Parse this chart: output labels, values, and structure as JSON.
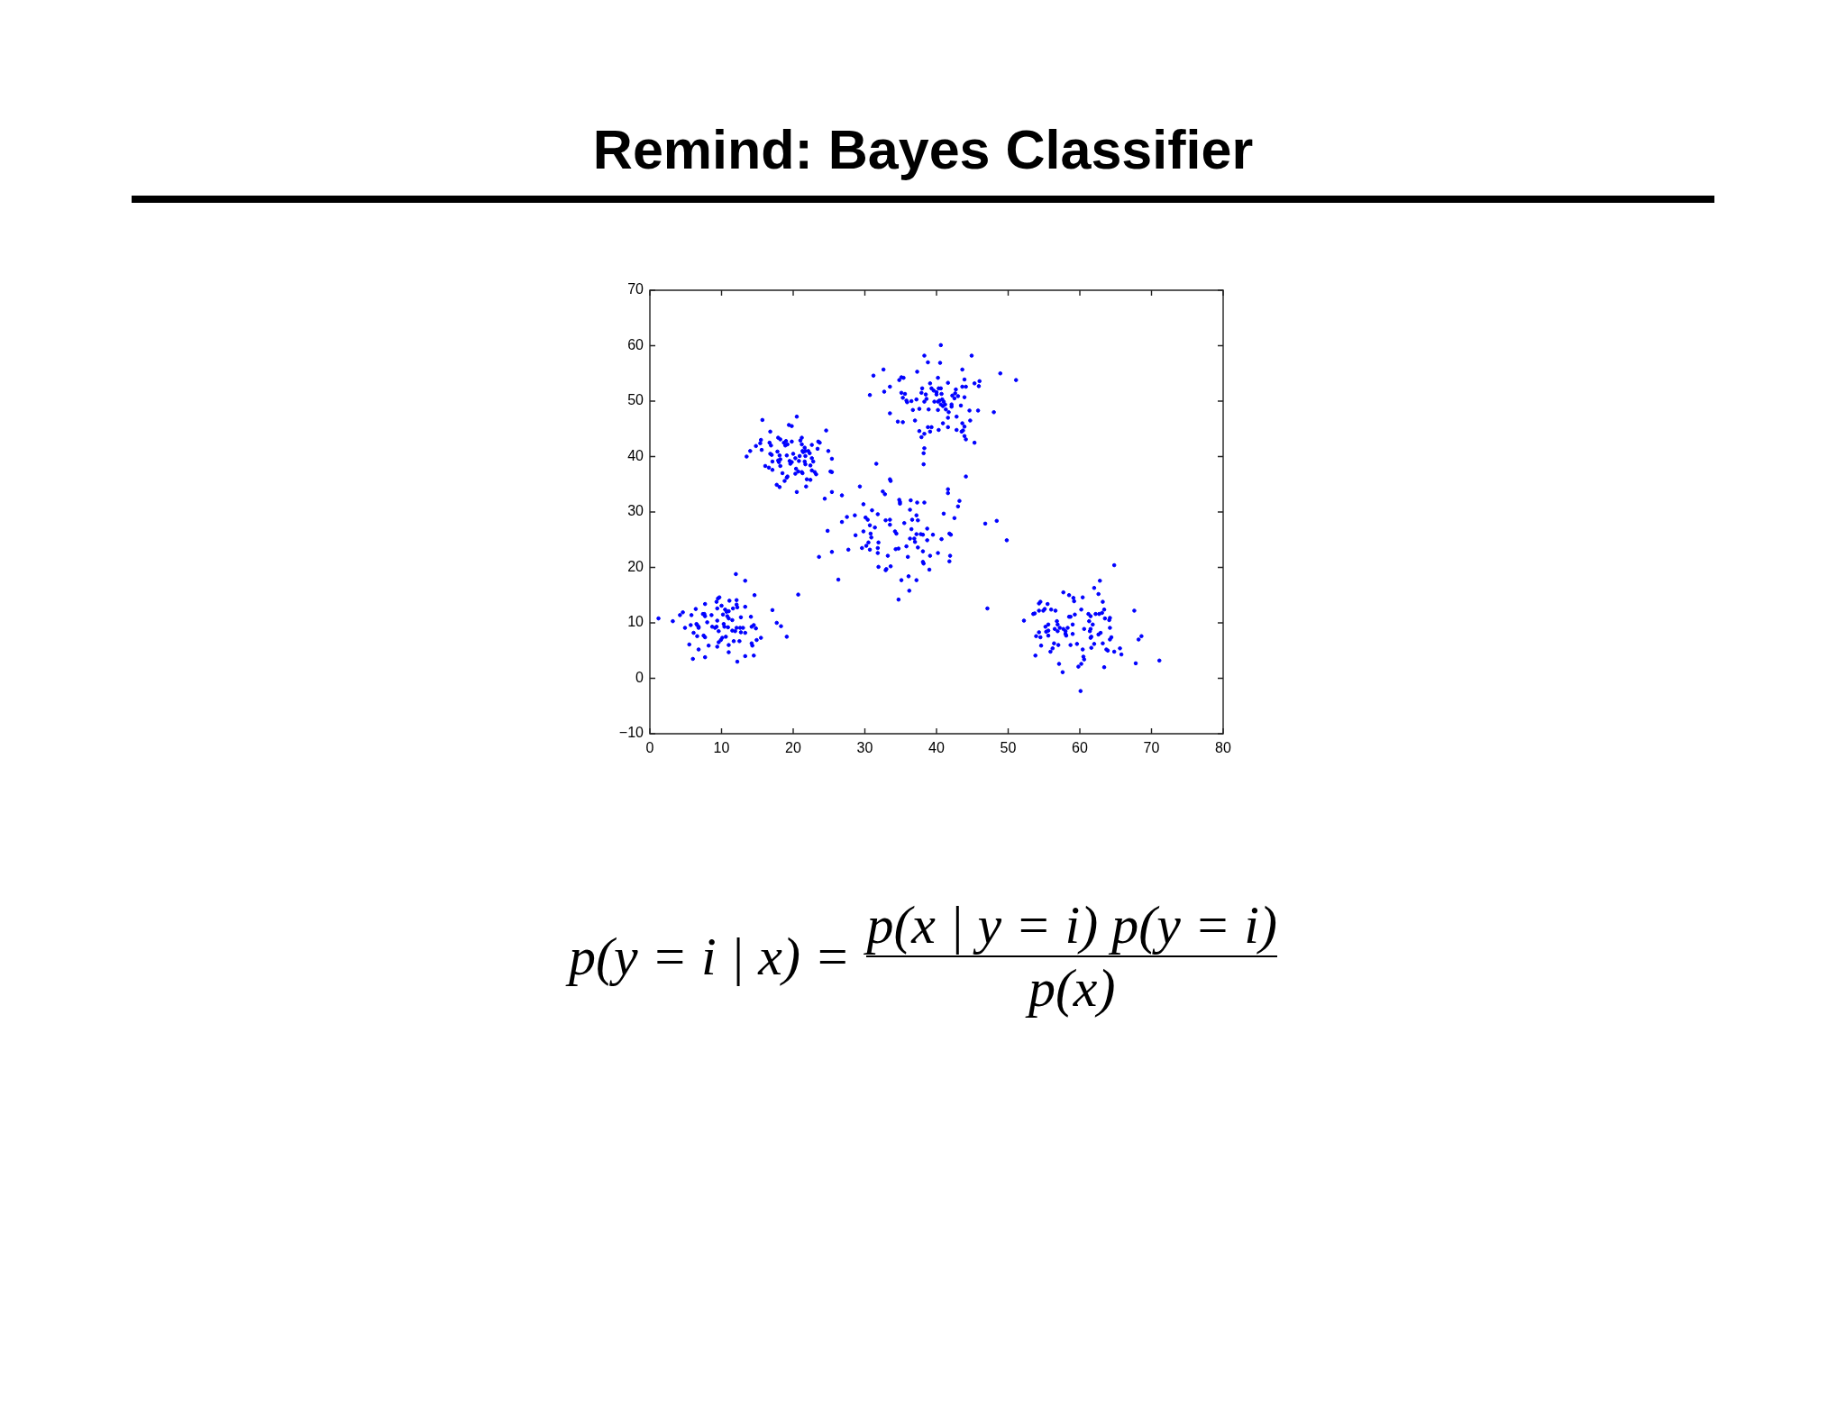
{
  "chart_data": {
    "type": "scatter",
    "title": "Remind: Bayes Classifier",
    "annotations": [
      "p(y = i | x) =",
      "p(x | y = i) p(y = i)",
      "p(x)"
    ],
    "color": "#0000ff",
    "marker": "circle",
    "xlim": [
      0,
      80
    ],
    "ylim": [
      -10,
      70
    ],
    "xticks": [
      0,
      10,
      20,
      30,
      40,
      50,
      60,
      70,
      80
    ],
    "yticks": [
      {
        "value": -10,
        "label": "−10"
      },
      0,
      10,
      20,
      30,
      40,
      50,
      60,
      70
    ],
    "x": [
      13.5,
      14.0,
      14.8,
      15.4,
      15.5,
      15.6,
      15.7,
      16.1,
      16.6,
      16.7,
      16.8,
      16.9,
      16.8,
      17.0,
      17.1,
      17.1,
      17.7,
      18.1,
      17.9,
      18.2,
      17.8,
      18.1,
      17.9,
      18.0,
      18.2,
      18.2,
      18.5,
      18.7,
      18.9,
      19.0,
      19.2,
      18.8,
      19.1,
      19.2,
      19.4,
      19.8,
      20.5,
      19.8,
      19.1,
      19.5,
      19.6,
      19.8,
      20.0,
      20.3,
      20.4,
      20.3,
      20.5,
      20.7,
      20.8,
      20.9,
      21.0,
      21.2,
      21.2,
      21.3,
      21.4,
      21.6,
      21.7,
      21.7,
      21.6,
      21.7,
      21.2,
      21.3,
      21.9,
      21.8,
      22.1,
      22.3,
      22.4,
      22.4,
      22.6,
      22.6,
      22.8,
      22.6,
      23.0,
      23.2,
      23.4,
      23.5,
      23.7,
      24.6,
      24.9,
      25.2,
      25.4,
      25.4,
      25.4,
      24.4,
      30.7,
      31.2,
      32.6,
      32.7,
      33.5,
      33.5,
      34.6,
      34.8,
      35.1,
      35.4,
      35.1,
      35.3,
      35.6,
      35.8,
      35.9,
      35.3,
      36.5,
      36.7,
      37.0,
      37.3,
      37.2,
      37.6,
      37.6,
      38.3,
      38.8,
      40.6,
      40.5,
      44.9,
      43.6,
      48.9,
      51.1,
      46.0,
      45.3,
      43.9,
      43.6,
      44.1,
      45.9,
      40.2,
      41.6,
      39.1,
      38.0,
      37.9,
      38.5,
      38.6,
      38.3,
      39.3,
      39.6,
      40.0,
      40.0,
      40.3,
      40.6,
      40.7,
      40.2,
      40.4,
      40.6,
      40.8,
      41.0,
      41.2,
      40.9,
      39.7,
      38.9,
      40.2,
      41.3,
      41.7,
      41.6,
      42.1,
      42.1,
      42.2,
      42.5,
      42.7,
      42.6,
      43.0,
      43.9,
      43.4,
      42.8,
      44.6,
      45.8,
      48.0,
      44.7,
      43.6,
      43.9,
      43.7,
      43.5,
      43.9,
      44.1,
      45.3,
      41.6,
      42.8,
      40.9,
      40.3,
      38.8,
      39.3,
      39.1,
      38.3,
      37.9,
      38.3,
      38.2,
      38.2,
      44.1,
      41.6,
      41.6,
      43.2,
      43.0,
      38.3,
      41.0,
      31.6,
      29.3,
      26.8,
      33.5,
      33.6,
      32.5,
      32.8,
      34.8,
      34.9,
      34.9,
      36.4,
      37.3,
      29.8,
      31.0,
      36.3,
      24.8,
      25.4,
      23.6,
      26.3,
      26.8,
      27.5,
      27.7,
      28.6,
      28.7,
      29.8,
      29.6,
      30.1,
      30.4,
      30.7,
      30.5,
      30.2,
      30.7,
      30.8,
      30.9,
      31.4,
      31.8,
      31.9,
      31.8,
      31.8,
      31.9,
      32.9,
      33.5,
      33.5,
      33.0,
      32.9,
      33.2,
      33.6,
      34.2,
      34.4,
      34.3,
      34.7,
      34.7,
      35.1,
      35.5,
      35.8,
      36.0,
      36.1,
      36.2,
      36.5,
      36.3,
      36.6,
      36.9,
      37.0,
      37.2,
      37.2,
      37.2,
      37.4,
      37.4,
      42.5,
      46.8,
      48.4,
      49.8,
      37.8,
      38.1,
      38.7,
      38.7,
      39.5,
      40.7,
      41.8,
      42.0,
      38.1,
      39.1,
      40.2,
      41.9,
      41.8,
      38.1,
      38.2,
      39.0,
      47.1,
      1.2,
      3.2,
      4.2,
      4.6,
      4.9,
      5.5,
      5.8,
      5.7,
      6.0,
      6.1,
      6.4,
      6.5,
      6.6,
      6.8,
      6.8,
      6.6,
      6.8,
      7.4,
      7.6,
      7.7,
      7.7,
      7.5,
      7.7,
      7.7,
      8.0,
      8.2,
      8.6,
      8.7,
      9.1,
      9.3,
      9.4,
      9.5,
      9.7,
      9.3,
      9.4,
      9.6,
      9.4,
      9.6,
      9.9,
      10.1,
      10.0,
      10.2,
      10.3,
      10.4,
      10.5,
      10.7,
      10.6,
      10.8,
      11.0,
      11.1,
      11.0,
      10.9,
      11.0,
      11.0,
      11.5,
      11.6,
      11.5,
      11.7,
      11.9,
      12.1,
      12.0,
      12.1,
      12.1,
      12.2,
      12.2,
      12.5,
      12.6,
      12.7,
      12.7,
      13.0,
      13.3,
      13.3,
      13.3,
      13.3,
      14.1,
      14.2,
      14.2,
      14.3,
      14.5,
      14.6,
      14.5,
      14.8,
      14.9,
      15.5,
      17.1,
      17.7,
      18.3,
      19.1,
      20.7,
      64.8,
      52.2,
      53.5,
      53.7,
      53.8,
      53.9,
      54.3,
      54.3,
      54.5,
      54.3,
      54.5,
      54.6,
      54.9,
      55.1,
      55.2,
      55.3,
      55.5,
      55.6,
      55.6,
      55.6,
      55.9,
      56.0,
      56.2,
      56.4,
      56.5,
      56.6,
      56.8,
      56.9,
      56.9,
      57.0,
      57.1,
      57.2,
      57.6,
      57.7,
      57.7,
      58.0,
      58.0,
      58.1,
      58.3,
      58.5,
      58.5,
      58.7,
      58.7,
      59.0,
      59.0,
      59.1,
      59.2,
      59.3,
      59.6,
      59.8,
      60.1,
      60.2,
      60.2,
      60.4,
      60.4,
      60.5,
      60.6,
      60.6,
      61.2,
      61.3,
      61.5,
      61.4,
      61.5,
      61.5,
      61.6,
      61.6,
      61.8,
      62.0,
      62.0,
      62.2,
      62.6,
      62.6,
      62.7,
      62.8,
      62.9,
      63.1,
      63.2,
      63.2,
      63.4,
      63.4,
      63.5,
      63.7,
      63.9,
      64.1,
      64.2,
      64.2,
      64.2,
      64.4,
      64.8,
      65.6,
      65.8,
      67.6,
      67.8,
      68.2,
      68.6,
      71.1
    ],
    "values": [
      40.0,
      41.0,
      41.9,
      42.4,
      43.0,
      41.2,
      46.6,
      38.3,
      38.0,
      42.5,
      44.5,
      42.0,
      40.5,
      40.3,
      39.1,
      37.6,
      34.9,
      34.5,
      43.4,
      43.1,
      40.9,
      40.2,
      39.3,
      39.0,
      39.5,
      38.3,
      37.0,
      42.5,
      42.0,
      42.8,
      42.2,
      35.6,
      36.2,
      36.4,
      45.7,
      45.5,
      47.2,
      42.7,
      40.2,
      39.2,
      38.7,
      39.0,
      40.5,
      39.7,
      37.8,
      36.9,
      33.6,
      37.3,
      39.2,
      40.1,
      42.9,
      43.4,
      42.2,
      41.0,
      40.8,
      41.6,
      41.0,
      40.1,
      39.1,
      38.6,
      37.2,
      37.0,
      35.9,
      34.6,
      41.0,
      40.6,
      38.4,
      35.8,
      42.1,
      39.7,
      39.1,
      37.5,
      37.2,
      36.8,
      41.4,
      42.7,
      42.5,
      44.7,
      41.0,
      37.3,
      37.2,
      39.6,
      33.6,
      32.4,
      51.1,
      54.6,
      55.7,
      51.7,
      52.6,
      47.8,
      46.3,
      53.8,
      54.3,
      54.2,
      51.5,
      50.6,
      51.3,
      50.1,
      49.8,
      46.2,
      50.0,
      48.4,
      46.5,
      55.3,
      50.3,
      48.6,
      44.6,
      58.2,
      57.0,
      60.1,
      56.9,
      58.2,
      55.7,
      55.0,
      53.8,
      53.6,
      53.2,
      53.9,
      52.6,
      52.6,
      52.7,
      54.2,
      53.3,
      53.2,
      52.3,
      51.5,
      51.2,
      50.4,
      49.9,
      52.3,
      51.9,
      51.6,
      51.2,
      52.3,
      52.3,
      51.3,
      49.9,
      50.1,
      49.4,
      50.3,
      49.9,
      49.4,
      49.1,
      49.9,
      48.5,
      48.4,
      48.5,
      48.0,
      47.0,
      49.4,
      49.0,
      51.0,
      50.5,
      52.1,
      51.4,
      50.9,
      50.7,
      49.2,
      47.2,
      48.3,
      48.3,
      48.0,
      46.5,
      46.0,
      45.4,
      44.7,
      44.5,
      43.7,
      43.1,
      42.5,
      45.3,
      44.8,
      46.0,
      44.8,
      45.3,
      45.3,
      44.5,
      44.1,
      43.5,
      41.5,
      40.6,
      38.6,
      36.4,
      34.1,
      33.4,
      32.0,
      31.0,
      31.7,
      29.7,
      38.7,
      34.6,
      33.0,
      35.9,
      35.6,
      33.7,
      33.2,
      32.2,
      31.8,
      31.5,
      32.1,
      31.7,
      31.4,
      30.3,
      30.4,
      26.6,
      22.8,
      21.9,
      17.8,
      28.2,
      29.1,
      23.2,
      29.4,
      25.8,
      26.5,
      23.5,
      29.0,
      28.6,
      27.6,
      24.5,
      23.9,
      23.2,
      26.1,
      25.4,
      27.2,
      29.6,
      24.5,
      23.5,
      22.6,
      20.1,
      28.5,
      28.6,
      27.7,
      19.7,
      19.5,
      22.1,
      20.2,
      26.5,
      26.1,
      23.3,
      23.4,
      14.2,
      17.7,
      28.0,
      23.8,
      21.9,
      18.4,
      15.8,
      26.9,
      25.2,
      28.6,
      25.2,
      24.6,
      26.0,
      29.4,
      17.7,
      28.5,
      23.6,
      28.9,
      27.9,
      28.4,
      24.9,
      26.0,
      25.9,
      27.0,
      24.9,
      25.9,
      25.1,
      26.1,
      25.9,
      22.9,
      22.1,
      22.6,
      22.1,
      21.1,
      21.0,
      20.7,
      19.6,
      12.6,
      10.8,
      10.3,
      11.4,
      11.9,
      9.1,
      6.1,
      11.4,
      9.6,
      3.5,
      8.2,
      12.5,
      9.8,
      9.6,
      9.3,
      9.1,
      7.6,
      5.2,
      11.6,
      11.6,
      11.2,
      13.4,
      7.7,
      7.4,
      3.8,
      10.1,
      5.9,
      11.4,
      9.3,
      9.1,
      13.8,
      12.6,
      14.4,
      14.6,
      9.3,
      10.4,
      8.5,
      5.7,
      6.5,
      6.9,
      7.3,
      13.1,
      11.5,
      9.8,
      9.3,
      12.4,
      12.0,
      7.5,
      11.2,
      12.1,
      14.0,
      10.8,
      9.2,
      6.0,
      4.7,
      10.5,
      12.6,
      8.6,
      6.7,
      8.5,
      9.1,
      18.8,
      14.1,
      13.3,
      12.8,
      3.0,
      6.7,
      9.1,
      11.0,
      8.3,
      9.1,
      17.6,
      12.9,
      8.2,
      4.0,
      11.1,
      9.3,
      6.3,
      5.9,
      4.1,
      15.0,
      9.6,
      9.0,
      6.9,
      7.3,
      12.3,
      10.0,
      9.4,
      7.5,
      15.1,
      20.4,
      10.4,
      11.6,
      11.7,
      4.1,
      7.6,
      12.2,
      13.5,
      13.8,
      8.3,
      7.4,
      5.9,
      12.2,
      12.5,
      9.3,
      8.4,
      13.4,
      8.6,
      9.7,
      7.7,
      4.8,
      12.4,
      5.4,
      6.3,
      8.9,
      12.2,
      10.3,
      8.5,
      9.7,
      6.0,
      2.6,
      9.1,
      1.1,
      15.5,
      8.9,
      8.5,
      8.0,
      7.7,
      9.1,
      11.1,
      15.0,
      11.1,
      6.0,
      9.7,
      8.0,
      14.5,
      13.9,
      11.5,
      6.2,
      2.1,
      -2.3,
      12.4,
      2.6,
      5.2,
      14.6,
      3.9,
      3.4,
      8.9,
      11.6,
      10.3,
      11.2,
      8.5,
      8.9,
      7.3,
      7.5,
      5.5,
      9.7,
      16.3,
      6.2,
      11.6,
      15.2,
      7.9,
      11.6,
      17.6,
      8.2,
      11.8,
      6.3,
      13.8,
      2.0,
      12.4,
      10.8,
      5.2,
      5.0,
      10.5,
      10.9,
      9.1,
      7.0,
      7.4,
      4.8,
      5.4,
      4.3,
      12.2,
      2.7,
      7.0,
      7.6,
      3.2
    ]
  }
}
